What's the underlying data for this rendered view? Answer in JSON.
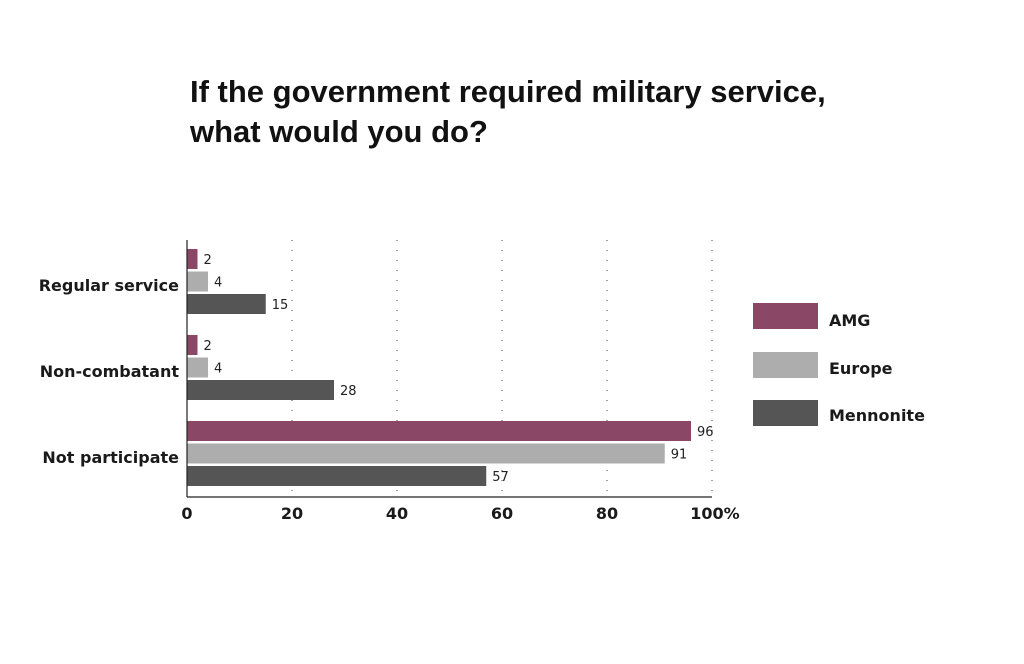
{
  "chart_data": {
    "type": "bar",
    "orientation": "horizontal",
    "title_lines": [
      "If the government required military service,",
      "what would you do?"
    ],
    "categories": [
      "Regular service",
      "Non-combatant",
      "Not participate"
    ],
    "series": [
      {
        "name": "AMG",
        "color": "#8b4866",
        "values": [
          2,
          2,
          96
        ]
      },
      {
        "name": "Europe",
        "color": "#adadad",
        "values": [
          4,
          4,
          91
        ]
      },
      {
        "name": "Mennonite",
        "color": "#555555",
        "values": [
          15,
          28,
          57
        ]
      }
    ],
    "xlim": [
      0,
      100
    ],
    "xticks": [
      "0",
      "20",
      "40",
      "60",
      "80",
      "100%"
    ],
    "grid": "vertical-dotted",
    "legend_position": "right"
  }
}
